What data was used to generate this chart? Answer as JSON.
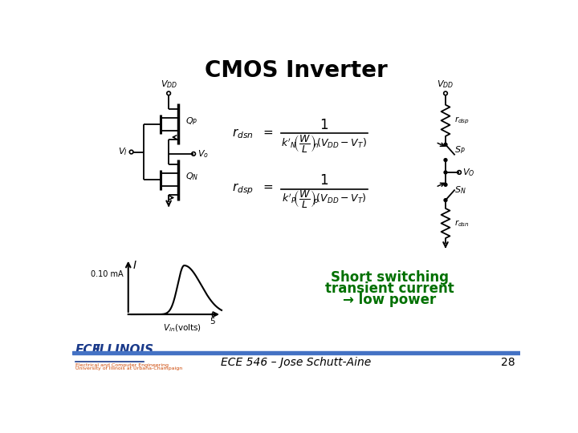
{
  "title": "CMOS Inverter",
  "title_fontsize": 20,
  "title_fontweight": "bold",
  "bg_color": "#ffffff",
  "footer_text": "ECE 546 – Jose Schutt-Aine",
  "footer_number": "28",
  "footer_bar_color": "#4472C4",
  "footer_fontsize": 10,
  "short_text_line1": "Short switching",
  "short_text_line2": "transient current",
  "short_text_line3": "→ low power",
  "short_text_color": "#007000",
  "short_text_fontsize": 12,
  "current_label": "0.10 mA",
  "I_label": "I"
}
